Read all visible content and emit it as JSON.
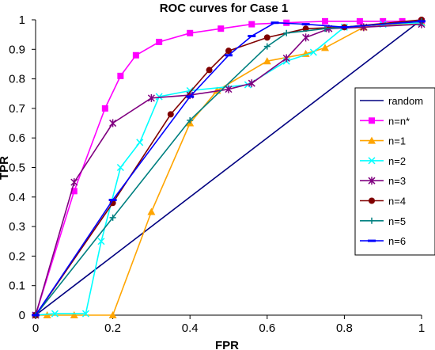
{
  "chart_data": {
    "type": "line",
    "title": "ROC curves for Case 1",
    "xlabel": "FPR",
    "ylabel": "TPR",
    "xlim": [
      0,
      1
    ],
    "ylim": [
      0,
      1
    ],
    "x_ticks": [
      "0",
      "0.2",
      "0.4",
      "0.6",
      "0.8",
      "1"
    ],
    "y_ticks": [
      "0",
      "0.1",
      "0.2",
      "0.3",
      "0.4",
      "0.5",
      "0.6",
      "0.7",
      "0.8",
      "0.9",
      "1"
    ],
    "x_tick_values": [
      0,
      0.2,
      0.4,
      0.6,
      0.8,
      1
    ],
    "y_tick_values": [
      0,
      0.1,
      0.2,
      0.3,
      0.4,
      0.5,
      0.6,
      0.7,
      0.8,
      0.9,
      1
    ],
    "grid": false,
    "legend_position": "right",
    "series": [
      {
        "name": "random",
        "color": "#000080",
        "marker": "none",
        "points": [
          [
            0,
            0
          ],
          [
            1,
            1
          ]
        ]
      },
      {
        "name": "n=n*",
        "color": "#ff00ff",
        "marker": "square",
        "points": [
          [
            0,
            0
          ],
          [
            0.1,
            0.42
          ],
          [
            0.18,
            0.7
          ],
          [
            0.22,
            0.81
          ],
          [
            0.26,
            0.88
          ],
          [
            0.32,
            0.925
          ],
          [
            0.4,
            0.955
          ],
          [
            0.48,
            0.97
          ],
          [
            0.56,
            0.985
          ],
          [
            0.65,
            0.99
          ],
          [
            0.75,
            0.995
          ],
          [
            0.84,
            0.995
          ],
          [
            0.9,
            0.995
          ],
          [
            0.95,
            0.995
          ],
          [
            1,
            0.995
          ]
        ]
      },
      {
        "name": "n=1",
        "color": "#ffa500",
        "marker": "triangle",
        "points": [
          [
            0,
            0
          ],
          [
            0.03,
            0
          ],
          [
            0.1,
            0
          ],
          [
            0.2,
            0
          ],
          [
            0.3,
            0.35
          ],
          [
            0.4,
            0.65
          ],
          [
            0.47,
            0.76
          ],
          [
            0.6,
            0.86
          ],
          [
            0.7,
            0.885
          ],
          [
            0.75,
            0.905
          ],
          [
            0.85,
            0.975
          ],
          [
            1,
            0.99
          ]
        ]
      },
      {
        "name": "n=2",
        "color": "#00ffff",
        "marker": "x",
        "points": [
          [
            0,
            0
          ],
          [
            0.05,
            0.005
          ],
          [
            0.13,
            0.005
          ],
          [
            0.17,
            0.25
          ],
          [
            0.22,
            0.5
          ],
          [
            0.27,
            0.585
          ],
          [
            0.32,
            0.74
          ],
          [
            0.4,
            0.76
          ],
          [
            0.55,
            0.78
          ],
          [
            0.65,
            0.86
          ],
          [
            0.72,
            0.89
          ],
          [
            0.8,
            0.975
          ],
          [
            0.9,
            0.985
          ],
          [
            1,
            0.99
          ]
        ]
      },
      {
        "name": "n=3",
        "color": "#800080",
        "marker": "asterisk",
        "points": [
          [
            0,
            0
          ],
          [
            0.1,
            0.45
          ],
          [
            0.2,
            0.65
          ],
          [
            0.3,
            0.735
          ],
          [
            0.4,
            0.745
          ],
          [
            0.5,
            0.765
          ],
          [
            0.56,
            0.785
          ],
          [
            0.65,
            0.87
          ],
          [
            0.7,
            0.94
          ],
          [
            0.76,
            0.97
          ],
          [
            0.85,
            0.975
          ],
          [
            1,
            0.985
          ]
        ]
      },
      {
        "name": "n=4",
        "color": "#800000",
        "marker": "circle",
        "points": [
          [
            0,
            0
          ],
          [
            0.2,
            0.38
          ],
          [
            0.35,
            0.68
          ],
          [
            0.45,
            0.83
          ],
          [
            0.5,
            0.895
          ],
          [
            0.6,
            0.94
          ],
          [
            0.7,
            0.97
          ],
          [
            0.8,
            0.975
          ],
          [
            1,
            1
          ]
        ]
      },
      {
        "name": "n=5",
        "color": "#008080",
        "marker": "plus",
        "points": [
          [
            0,
            0
          ],
          [
            0.2,
            0.33
          ],
          [
            0.4,
            0.66
          ],
          [
            0.6,
            0.91
          ],
          [
            0.65,
            0.955
          ],
          [
            0.75,
            0.97
          ],
          [
            1,
            0.995
          ]
        ]
      },
      {
        "name": "n=6",
        "color": "#0000ff",
        "marker": "dash",
        "points": [
          [
            0,
            0
          ],
          [
            0.2,
            0.39
          ],
          [
            0.4,
            0.74
          ],
          [
            0.5,
            0.88
          ],
          [
            0.56,
            0.945
          ],
          [
            0.62,
            0.99
          ],
          [
            0.7,
            0.985
          ],
          [
            0.8,
            0.975
          ],
          [
            1,
            0.995
          ]
        ]
      }
    ]
  }
}
